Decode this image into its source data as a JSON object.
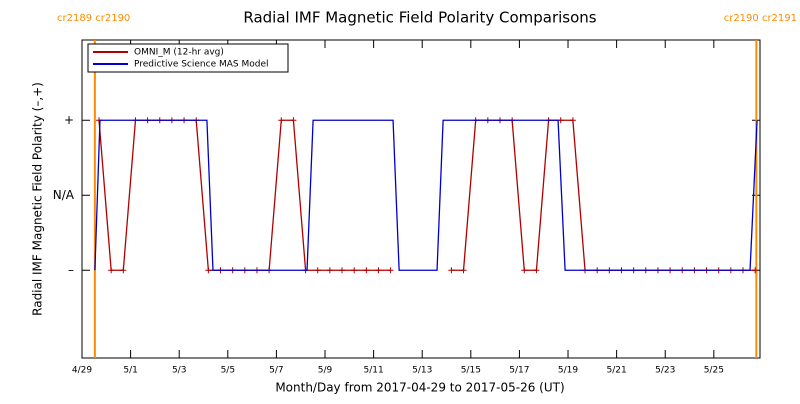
{
  "chart_data": {
    "type": "line",
    "title": "Radial IMF Magnetic Field Polarity Comparisons",
    "x_label": "Month/Day from 2017-04-29 to 2017-05-26 (UT)",
    "y_label": "Radial IMF Magnetic Field Polarity (–,+)",
    "xlim": [
      0,
      27.9
    ],
    "ylim": [
      -2.17,
      2.07
    ],
    "xticks": [
      {
        "value": 0,
        "label": "4/29"
      },
      {
        "value": 2,
        "label": "5/1"
      },
      {
        "value": 4,
        "label": "5/3"
      },
      {
        "value": 6,
        "label": "5/5"
      },
      {
        "value": 8,
        "label": "5/7"
      },
      {
        "value": 10,
        "label": "5/9"
      },
      {
        "value": 12,
        "label": "5/11"
      },
      {
        "value": 14,
        "label": "5/13"
      },
      {
        "value": 16,
        "label": "5/15"
      },
      {
        "value": 18,
        "label": "5/17"
      },
      {
        "value": 20,
        "label": "5/19"
      },
      {
        "value": 22,
        "label": "5/21"
      },
      {
        "value": 24,
        "label": "5/23"
      },
      {
        "value": 26,
        "label": "5/25"
      }
    ],
    "yticks": [
      {
        "value": 1,
        "label": "+"
      },
      {
        "value": 0,
        "label": "N/A"
      },
      {
        "value": -1,
        "label": "–"
      }
    ],
    "legend": "top-left",
    "markers": {
      "color": "#ff8c00",
      "lines": [
        {
          "x": 0.53,
          "label": "cr2189 cr2190"
        },
        {
          "x": 27.75,
          "label": "cr2190 cr2191"
        }
      ]
    },
    "series": [
      {
        "name": "OMNI_M (12-hr avg)",
        "color": "#b00000",
        "marker": "+",
        "x": [
          0.7,
          1.2,
          1.7,
          2.2,
          2.7,
          3.2,
          3.7,
          4.2,
          4.7,
          5.2,
          5.7,
          6.2,
          6.7,
          7.2,
          7.7,
          8.2,
          8.7,
          9.2,
          9.7,
          10.2,
          10.7,
          11.2,
          11.7,
          12.2,
          12.7,
          13.2,
          13.7,
          14.2,
          14.7,
          15.2,
          15.7,
          16.2,
          16.7,
          17.2,
          17.7,
          18.2,
          18.7,
          19.2,
          19.7,
          20.2,
          20.7,
          21.2,
          21.7,
          22.2,
          22.7,
          23.2,
          23.7,
          24.2,
          24.7,
          25.2,
          25.7,
          26.2,
          26.7,
          27.2,
          27.7
        ],
        "values": [
          1,
          -1,
          -1,
          1,
          1,
          1,
          1,
          1,
          1,
          -1,
          -1,
          -1,
          -1,
          -1,
          -1,
          1,
          1,
          -1,
          -1,
          -1,
          -1,
          -1,
          -1,
          -1,
          -1,
          null,
          null,
          null,
          null,
          -1,
          -1,
          1,
          1,
          1,
          1,
          -1,
          -1,
          1,
          1,
          1,
          -1,
          -1,
          -1,
          -1,
          -1,
          -1,
          -1,
          -1,
          -1,
          -1,
          -1,
          -1,
          -1,
          -1,
          -1
        ]
      },
      {
        "name": "Predictive Science MAS Model",
        "color": "#0000cc",
        "x": [
          0.53,
          0.74,
          5.14,
          5.39,
          9.26,
          9.51,
          12.8,
          13.05,
          14.61,
          14.86,
          19.59,
          19.88,
          27.49,
          27.78
        ],
        "values": [
          -1,
          1,
          1,
          -1,
          -1,
          1,
          1,
          -1,
          -1,
          1,
          1,
          -1,
          -1,
          1
        ]
      }
    ]
  }
}
